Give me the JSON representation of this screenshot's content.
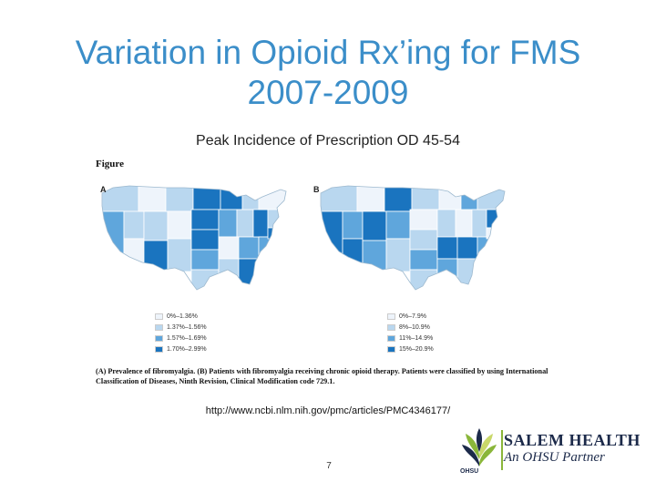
{
  "slide": {
    "title": "Variation in Opioid Rx’ing for FMS 2007-2009",
    "subtitle": "Peak Incidence of Prescription OD 45-54",
    "url": "http://www.ncbi.nlm.nih.gov/pmc/articles/PMC4346177/",
    "page_number": "7"
  },
  "figure": {
    "label": "Figure",
    "panel_a": "A",
    "panel_b": "B",
    "legend_a": [
      "0%–1.36%",
      "1.37%–1.56%",
      "1.57%–1.69%",
      "1.70%–2.99%"
    ],
    "legend_b": [
      "0%–7.9%",
      "8%–10.9%",
      "11%–14.9%",
      "15%–20.9%"
    ],
    "colors": [
      "#eef4fb",
      "#b9d7ef",
      "#5fa6dc",
      "#1a74bf"
    ],
    "caption": "(A) Prevalence of fibromyalgia. (B) Patients with fibromyalgia receiving chronic opioid therapy. Patients were classified by using International Classification of Diseases, Ninth Revision, Clinical Modification code 729.1."
  },
  "logo": {
    "name": "SALEM HEALTH",
    "tagline": "An OHSU Partner",
    "mark_text": "OHSU",
    "colors": {
      "green": "#8ab63a",
      "navy": "#1c2a4a"
    },
    "icon": "salem-health-leaf-logo"
  }
}
